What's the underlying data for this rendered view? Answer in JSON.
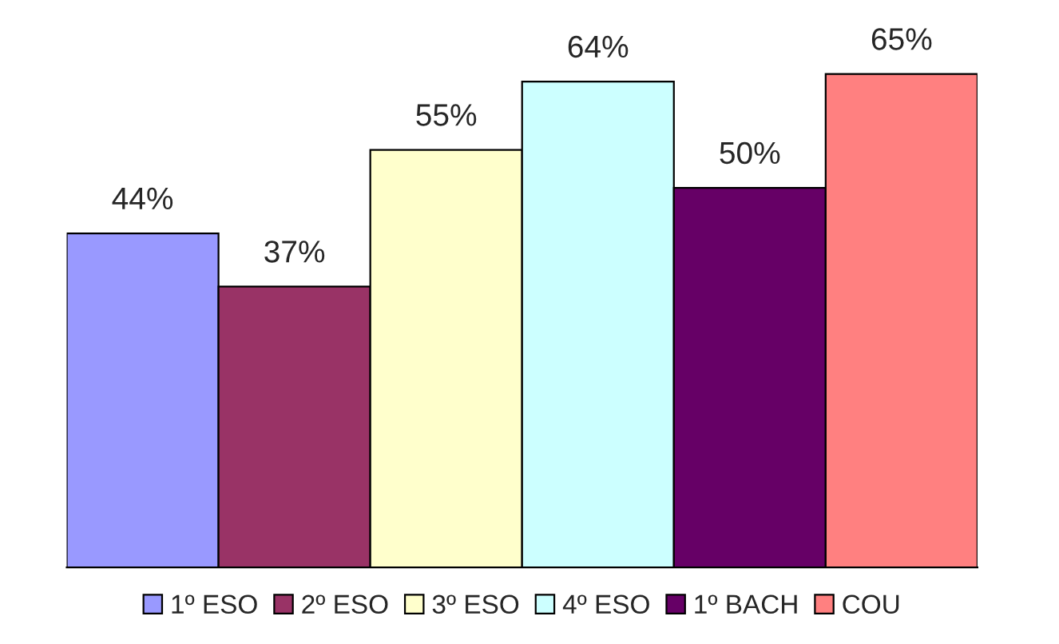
{
  "chart_data": {
    "type": "bar",
    "categories": [
      null
    ],
    "series": [
      {
        "name": "1º ESO",
        "color": "#9999ff",
        "values": [
          44
        ],
        "value_labels": [
          "44%"
        ]
      },
      {
        "name": "2º ESO",
        "color": "#993366",
        "values": [
          37
        ],
        "value_labels": [
          "37%"
        ]
      },
      {
        "name": "3º ESO",
        "color": "#ffffcc",
        "values": [
          55
        ],
        "value_labels": [
          "55%"
        ]
      },
      {
        "name": "4º ESO",
        "color": "#ccffff",
        "values": [
          64
        ],
        "value_labels": [
          "64%"
        ]
      },
      {
        "name": "1º BACH",
        "color": "#660066",
        "values": [
          50
        ],
        "value_labels": [
          "50%"
        ]
      },
      {
        "name": "COU",
        "color": "#ff8080",
        "values": [
          65
        ],
        "value_labels": [
          "65%"
        ]
      }
    ],
    "legend": "bottom",
    "grid": false
  }
}
